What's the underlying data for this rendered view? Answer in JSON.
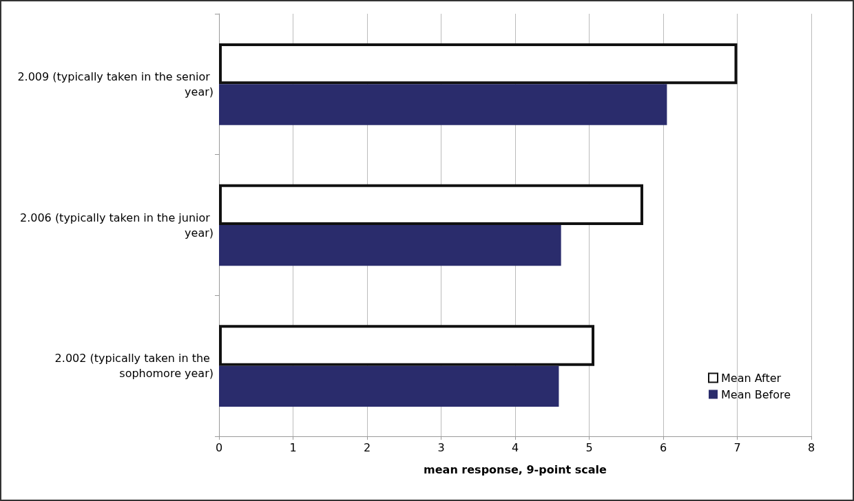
{
  "chart_data": {
    "type": "bar",
    "orientation": "horizontal",
    "categories": [
      "2.009 (typically taken in the senior year)",
      "2.006 (typically taken in the junior year)",
      "2.002 (typically taken in the sophomore year)"
    ],
    "series": [
      {
        "name": "Mean After",
        "color": "#ffffff",
        "values": [
          7.0,
          5.73,
          5.07
        ]
      },
      {
        "name": "Mean Before",
        "color": "#2a2c6c",
        "values": [
          6.05,
          4.62,
          4.59
        ]
      }
    ],
    "xlim": [
      0,
      8
    ],
    "xticks": [
      0,
      1,
      2,
      3,
      4,
      5,
      6,
      7,
      8
    ],
    "xlabel": "mean response, 9-point scale",
    "grid": "x",
    "legend": "bottom right"
  }
}
